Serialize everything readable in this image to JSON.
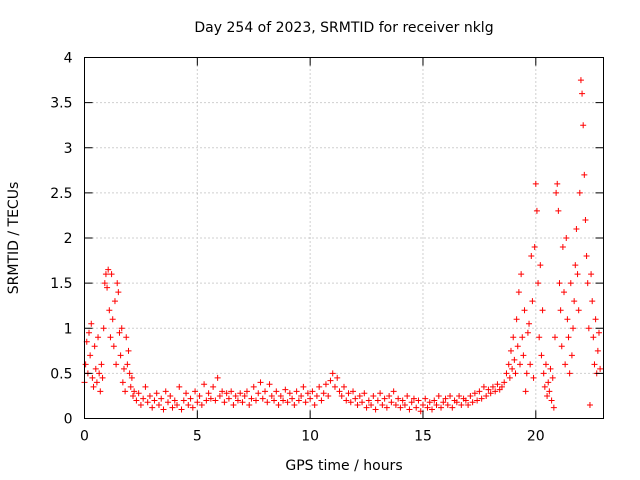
{
  "chart_data": {
    "type": "scatter",
    "title": "Day 254 of 2023, SRMTID for receiver nklg",
    "xlabel": "GPS time / hours",
    "ylabel": "SRMTID / TECUs",
    "xlim": [
      0,
      23
    ],
    "ylim": [
      0,
      4
    ],
    "xticks": [
      0,
      5,
      10,
      15,
      20
    ],
    "yticks": [
      0,
      0.5,
      1,
      1.5,
      2,
      2.5,
      3,
      3.5,
      4
    ],
    "ytick_labels": [
      "0",
      "0.5",
      "1",
      "1.5",
      "2",
      "2.5",
      "3",
      "3.5",
      "4"
    ],
    "grid": true,
    "marker": "+",
    "color": "#ff0000",
    "series": [
      {
        "name": "nklg",
        "points": [
          [
            0.0,
            0.4
          ],
          [
            0.05,
            0.6
          ],
          [
            0.1,
            0.85
          ],
          [
            0.15,
            0.5
          ],
          [
            0.2,
            0.95
          ],
          [
            0.25,
            0.7
          ],
          [
            0.3,
            1.05
          ],
          [
            0.35,
            0.45
          ],
          [
            0.4,
            0.35
          ],
          [
            0.45,
            0.8
          ],
          [
            0.5,
            0.55
          ],
          [
            0.55,
            0.4
          ],
          [
            0.6,
            0.9
          ],
          [
            0.65,
            0.5
          ],
          [
            0.7,
            0.3
          ],
          [
            0.75,
            0.6
          ],
          [
            0.8,
            0.45
          ],
          [
            0.85,
            1.0
          ],
          [
            0.9,
            1.5
          ],
          [
            0.95,
            1.6
          ],
          [
            1.0,
            1.45
          ],
          [
            1.05,
            1.65
          ],
          [
            1.1,
            1.2
          ],
          [
            1.15,
            0.9
          ],
          [
            1.2,
            1.6
          ],
          [
            1.25,
            1.1
          ],
          [
            1.3,
            0.8
          ],
          [
            1.35,
            1.3
          ],
          [
            1.4,
            0.6
          ],
          [
            1.45,
            1.5
          ],
          [
            1.5,
            1.4
          ],
          [
            1.55,
            0.95
          ],
          [
            1.6,
            0.7
          ],
          [
            1.65,
            1.0
          ],
          [
            1.7,
            0.4
          ],
          [
            1.75,
            0.55
          ],
          [
            1.8,
            0.3
          ],
          [
            1.85,
            0.9
          ],
          [
            1.9,
            0.6
          ],
          [
            1.95,
            0.75
          ],
          [
            2.0,
            0.5
          ],
          [
            2.05,
            0.35
          ],
          [
            2.1,
            0.45
          ],
          [
            2.15,
            0.25
          ],
          [
            2.2,
            0.3
          ],
          [
            2.3,
            0.2
          ],
          [
            2.4,
            0.28
          ],
          [
            2.5,
            0.15
          ],
          [
            2.6,
            0.22
          ],
          [
            2.7,
            0.35
          ],
          [
            2.8,
            0.18
          ],
          [
            2.9,
            0.25
          ],
          [
            3.0,
            0.12
          ],
          [
            3.1,
            0.2
          ],
          [
            3.2,
            0.28
          ],
          [
            3.3,
            0.15
          ],
          [
            3.4,
            0.22
          ],
          [
            3.5,
            0.1
          ],
          [
            3.6,
            0.3
          ],
          [
            3.7,
            0.18
          ],
          [
            3.8,
            0.25
          ],
          [
            3.9,
            0.12
          ],
          [
            4.0,
            0.2
          ],
          [
            4.1,
            0.15
          ],
          [
            4.2,
            0.35
          ],
          [
            4.3,
            0.1
          ],
          [
            4.4,
            0.2
          ],
          [
            4.5,
            0.28
          ],
          [
            4.6,
            0.15
          ],
          [
            4.7,
            0.22
          ],
          [
            4.8,
            0.12
          ],
          [
            4.9,
            0.3
          ],
          [
            5.0,
            0.18
          ],
          [
            5.1,
            0.25
          ],
          [
            5.2,
            0.15
          ],
          [
            5.3,
            0.38
          ],
          [
            5.4,
            0.2
          ],
          [
            5.5,
            0.28
          ],
          [
            5.6,
            0.22
          ],
          [
            5.7,
            0.35
          ],
          [
            5.8,
            0.2
          ],
          [
            5.9,
            0.45
          ],
          [
            6.0,
            0.25
          ],
          [
            6.1,
            0.3
          ],
          [
            6.2,
            0.18
          ],
          [
            6.3,
            0.28
          ],
          [
            6.4,
            0.22
          ],
          [
            6.5,
            0.3
          ],
          [
            6.6,
            0.15
          ],
          [
            6.7,
            0.25
          ],
          [
            6.8,
            0.2
          ],
          [
            6.9,
            0.28
          ],
          [
            7.0,
            0.18
          ],
          [
            7.1,
            0.25
          ],
          [
            7.2,
            0.3
          ],
          [
            7.3,
            0.15
          ],
          [
            7.4,
            0.22
          ],
          [
            7.5,
            0.35
          ],
          [
            7.6,
            0.2
          ],
          [
            7.7,
            0.28
          ],
          [
            7.8,
            0.4
          ],
          [
            7.9,
            0.22
          ],
          [
            8.0,
            0.3
          ],
          [
            8.1,
            0.18
          ],
          [
            8.2,
            0.38
          ],
          [
            8.3,
            0.25
          ],
          [
            8.4,
            0.2
          ],
          [
            8.5,
            0.3
          ],
          [
            8.6,
            0.15
          ],
          [
            8.7,
            0.25
          ],
          [
            8.8,
            0.2
          ],
          [
            8.9,
            0.32
          ],
          [
            9.0,
            0.18
          ],
          [
            9.1,
            0.28
          ],
          [
            9.2,
            0.22
          ],
          [
            9.3,
            0.15
          ],
          [
            9.4,
            0.3
          ],
          [
            9.5,
            0.2
          ],
          [
            9.6,
            0.25
          ],
          [
            9.7,
            0.35
          ],
          [
            9.8,
            0.18
          ],
          [
            9.9,
            0.28
          ],
          [
            10.0,
            0.22
          ],
          [
            10.1,
            0.3
          ],
          [
            10.2,
            0.15
          ],
          [
            10.3,
            0.25
          ],
          [
            10.4,
            0.35
          ],
          [
            10.5,
            0.2
          ],
          [
            10.6,
            0.28
          ],
          [
            10.7,
            0.38
          ],
          [
            10.8,
            0.25
          ],
          [
            10.9,
            0.42
          ],
          [
            11.0,
            0.5
          ],
          [
            11.1,
            0.35
          ],
          [
            11.2,
            0.45
          ],
          [
            11.3,
            0.3
          ],
          [
            11.4,
            0.25
          ],
          [
            11.5,
            0.35
          ],
          [
            11.6,
            0.2
          ],
          [
            11.7,
            0.28
          ],
          [
            11.8,
            0.18
          ],
          [
            11.9,
            0.3
          ],
          [
            12.0,
            0.22
          ],
          [
            12.1,
            0.15
          ],
          [
            12.2,
            0.25
          ],
          [
            12.3,
            0.18
          ],
          [
            12.4,
            0.28
          ],
          [
            12.5,
            0.12
          ],
          [
            12.6,
            0.2
          ],
          [
            12.7,
            0.15
          ],
          [
            12.8,
            0.25
          ],
          [
            12.9,
            0.1
          ],
          [
            13.0,
            0.2
          ],
          [
            13.1,
            0.28
          ],
          [
            13.2,
            0.15
          ],
          [
            13.3,
            0.22
          ],
          [
            13.4,
            0.12
          ],
          [
            13.5,
            0.25
          ],
          [
            13.6,
            0.18
          ],
          [
            13.7,
            0.3
          ],
          [
            13.8,
            0.15
          ],
          [
            13.9,
            0.22
          ],
          [
            14.0,
            0.12
          ],
          [
            14.1,
            0.2
          ],
          [
            14.2,
            0.15
          ],
          [
            14.3,
            0.25
          ],
          [
            14.4,
            0.1
          ],
          [
            14.5,
            0.18
          ],
          [
            14.6,
            0.22
          ],
          [
            14.7,
            0.12
          ],
          [
            14.8,
            0.2
          ],
          [
            14.9,
            0.08
          ],
          [
            15.0,
            0.15
          ],
          [
            15.1,
            0.22
          ],
          [
            15.2,
            0.12
          ],
          [
            15.3,
            0.18
          ],
          [
            15.4,
            0.1
          ],
          [
            15.5,
            0.2
          ],
          [
            15.6,
            0.15
          ],
          [
            15.7,
            0.25
          ],
          [
            15.8,
            0.12
          ],
          [
            15.9,
            0.18
          ],
          [
            16.0,
            0.22
          ],
          [
            16.1,
            0.15
          ],
          [
            16.2,
            0.25
          ],
          [
            16.3,
            0.12
          ],
          [
            16.4,
            0.2
          ],
          [
            16.5,
            0.18
          ],
          [
            16.6,
            0.25
          ],
          [
            16.7,
            0.15
          ],
          [
            16.8,
            0.22
          ],
          [
            16.9,
            0.2
          ],
          [
            17.0,
            0.15
          ],
          [
            17.1,
            0.25
          ],
          [
            17.2,
            0.18
          ],
          [
            17.3,
            0.28
          ],
          [
            17.4,
            0.2
          ],
          [
            17.5,
            0.3
          ],
          [
            17.6,
            0.22
          ],
          [
            17.7,
            0.35
          ],
          [
            17.8,
            0.25
          ],
          [
            17.9,
            0.32
          ],
          [
            18.0,
            0.28
          ],
          [
            18.1,
            0.35
          ],
          [
            18.2,
            0.3
          ],
          [
            18.3,
            0.38
          ],
          [
            18.4,
            0.32
          ],
          [
            18.5,
            0.35
          ],
          [
            18.6,
            0.4
          ],
          [
            18.7,
            0.5
          ],
          [
            18.8,
            0.6
          ],
          [
            18.85,
            0.45
          ],
          [
            18.9,
            0.75
          ],
          [
            18.95,
            0.55
          ],
          [
            19.0,
            0.9
          ],
          [
            19.05,
            0.65
          ],
          [
            19.1,
            0.5
          ],
          [
            19.15,
            1.1
          ],
          [
            19.2,
            0.8
          ],
          [
            19.25,
            1.4
          ],
          [
            19.3,
            0.6
          ],
          [
            19.35,
            1.6
          ],
          [
            19.4,
            0.9
          ],
          [
            19.45,
            0.7
          ],
          [
            19.5,
            1.2
          ],
          [
            19.55,
            0.3
          ],
          [
            19.6,
            0.5
          ],
          [
            19.65,
            0.95
          ],
          [
            19.7,
            1.05
          ],
          [
            19.75,
            0.6
          ],
          [
            19.8,
            1.8
          ],
          [
            19.85,
            1.3
          ],
          [
            19.9,
            0.45
          ],
          [
            19.95,
            1.9
          ],
          [
            20.0,
            2.6
          ],
          [
            20.05,
            2.3
          ],
          [
            20.1,
            1.5
          ],
          [
            20.15,
            0.9
          ],
          [
            20.2,
            1.7
          ],
          [
            20.25,
            0.7
          ],
          [
            20.3,
            1.2
          ],
          [
            20.35,
            0.5
          ],
          [
            20.4,
            0.35
          ],
          [
            20.45,
            0.6
          ],
          [
            20.5,
            0.25
          ],
          [
            20.55,
            0.4
          ],
          [
            20.6,
            0.3
          ],
          [
            20.65,
            0.55
          ],
          [
            20.7,
            0.2
          ],
          [
            20.75,
            0.45
          ],
          [
            20.8,
            0.12
          ],
          [
            20.85,
            0.9
          ],
          [
            20.9,
            2.5
          ],
          [
            20.95,
            2.6
          ],
          [
            21.0,
            2.3
          ],
          [
            21.05,
            1.5
          ],
          [
            21.1,
            1.2
          ],
          [
            21.15,
            0.8
          ],
          [
            21.2,
            1.9
          ],
          [
            21.25,
            1.4
          ],
          [
            21.3,
            0.6
          ],
          [
            21.35,
            2.0
          ],
          [
            21.4,
            1.1
          ],
          [
            21.45,
            0.9
          ],
          [
            21.5,
            0.5
          ],
          [
            21.55,
            1.5
          ],
          [
            21.6,
            0.7
          ],
          [
            21.65,
            1.0
          ],
          [
            21.7,
            1.3
          ],
          [
            21.75,
            1.7
          ],
          [
            21.8,
            2.1
          ],
          [
            21.85,
            1.6
          ],
          [
            21.9,
            1.2
          ],
          [
            21.95,
            2.5
          ],
          [
            22.0,
            3.75
          ],
          [
            22.05,
            3.6
          ],
          [
            22.1,
            3.25
          ],
          [
            22.15,
            2.7
          ],
          [
            22.2,
            2.2
          ],
          [
            22.25,
            1.8
          ],
          [
            22.3,
            1.5
          ],
          [
            22.35,
            1.0
          ],
          [
            22.4,
            0.15
          ],
          [
            22.45,
            1.6
          ],
          [
            22.5,
            1.3
          ],
          [
            22.55,
            0.9
          ],
          [
            22.6,
            0.6
          ],
          [
            22.65,
            1.1
          ],
          [
            22.7,
            0.5
          ],
          [
            22.75,
            0.75
          ],
          [
            22.8,
            0.95
          ],
          [
            22.85,
            0.55
          ]
        ]
      }
    ]
  }
}
